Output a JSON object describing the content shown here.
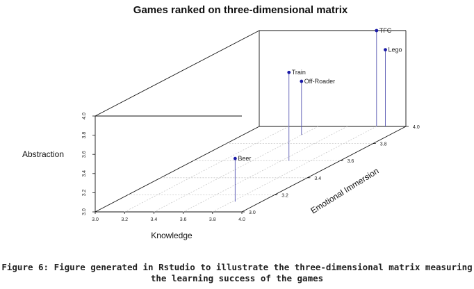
{
  "caption": "Figure 6: Figure generated in Rstudio to illustrate the three-dimensional matrix measuring the learning success of the games",
  "chart_data": {
    "type": "scatter",
    "title": "Games ranked on three-dimensional matrix",
    "xlabel": "Knowledge",
    "ylabel": "Emotional Immersion",
    "zlabel": "Abstraction",
    "xlim": [
      3.0,
      4.0
    ],
    "ylim": [
      3.0,
      4.0
    ],
    "zlim": [
      3.0,
      4.0
    ],
    "x_ticks": [
      "3.0",
      "3.2",
      "3.4",
      "3.6",
      "3.8",
      "4.0"
    ],
    "y_ticks": [
      "3.0",
      "3.2",
      "3.4",
      "3.6",
      "3.8",
      "4.0"
    ],
    "z_ticks": [
      "3.0",
      "3.2",
      "3.4",
      "3.6",
      "3.8",
      "4.0"
    ],
    "grid": true,
    "point_color": "#1a1aa6",
    "points": [
      {
        "name": "Off-Roader",
        "x": 3.4,
        "y": 3.9,
        "z": 3.56
      },
      {
        "name": "Train",
        "x": 3.65,
        "y": 3.6,
        "z": 3.92
      },
      {
        "name": "Beer",
        "x": 3.82,
        "y": 3.12,
        "z": 3.45
      },
      {
        "name": "TFC",
        "x": 3.8,
        "y": 4.0,
        "z": 4.0
      },
      {
        "name": "Lego",
        "x": 3.86,
        "y": 4.0,
        "z": 3.8
      }
    ]
  }
}
